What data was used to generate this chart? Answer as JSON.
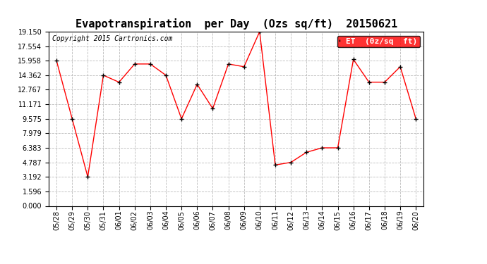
{
  "title": "Evapotranspiration  per Day  (Ozs sq/ft)  20150621",
  "copyright": "Copyright 2015 Cartronics.com",
  "legend_label": "ET  (0z/sq  ft)",
  "dates": [
    "05/28",
    "05/29",
    "05/30",
    "05/31",
    "06/01",
    "06/02",
    "06/03",
    "06/04",
    "06/05",
    "06/06",
    "06/07",
    "06/08",
    "06/09",
    "06/10",
    "06/11",
    "06/12",
    "06/13",
    "06/14",
    "06/15",
    "06/16",
    "06/17",
    "06/18",
    "06/19",
    "06/20"
  ],
  "values": [
    15.958,
    9.575,
    3.192,
    14.362,
    13.6,
    15.6,
    15.6,
    14.362,
    9.575,
    13.367,
    10.7,
    15.6,
    15.3,
    19.15,
    4.5,
    4.787,
    5.9,
    6.383,
    6.383,
    16.1,
    13.6,
    13.6,
    15.3,
    9.575
  ],
  "line_color": "red",
  "marker_color": "black",
  "bg_color": "white",
  "grid_color": "#bbbbbb",
  "ylim": [
    0,
    19.15
  ],
  "yticks": [
    0.0,
    1.596,
    3.192,
    4.787,
    6.383,
    7.979,
    9.575,
    11.171,
    12.767,
    14.362,
    15.958,
    17.554,
    19.15
  ],
  "title_fontsize": 11,
  "copyright_fontsize": 7,
  "tick_fontsize": 7,
  "legend_fontsize": 8
}
